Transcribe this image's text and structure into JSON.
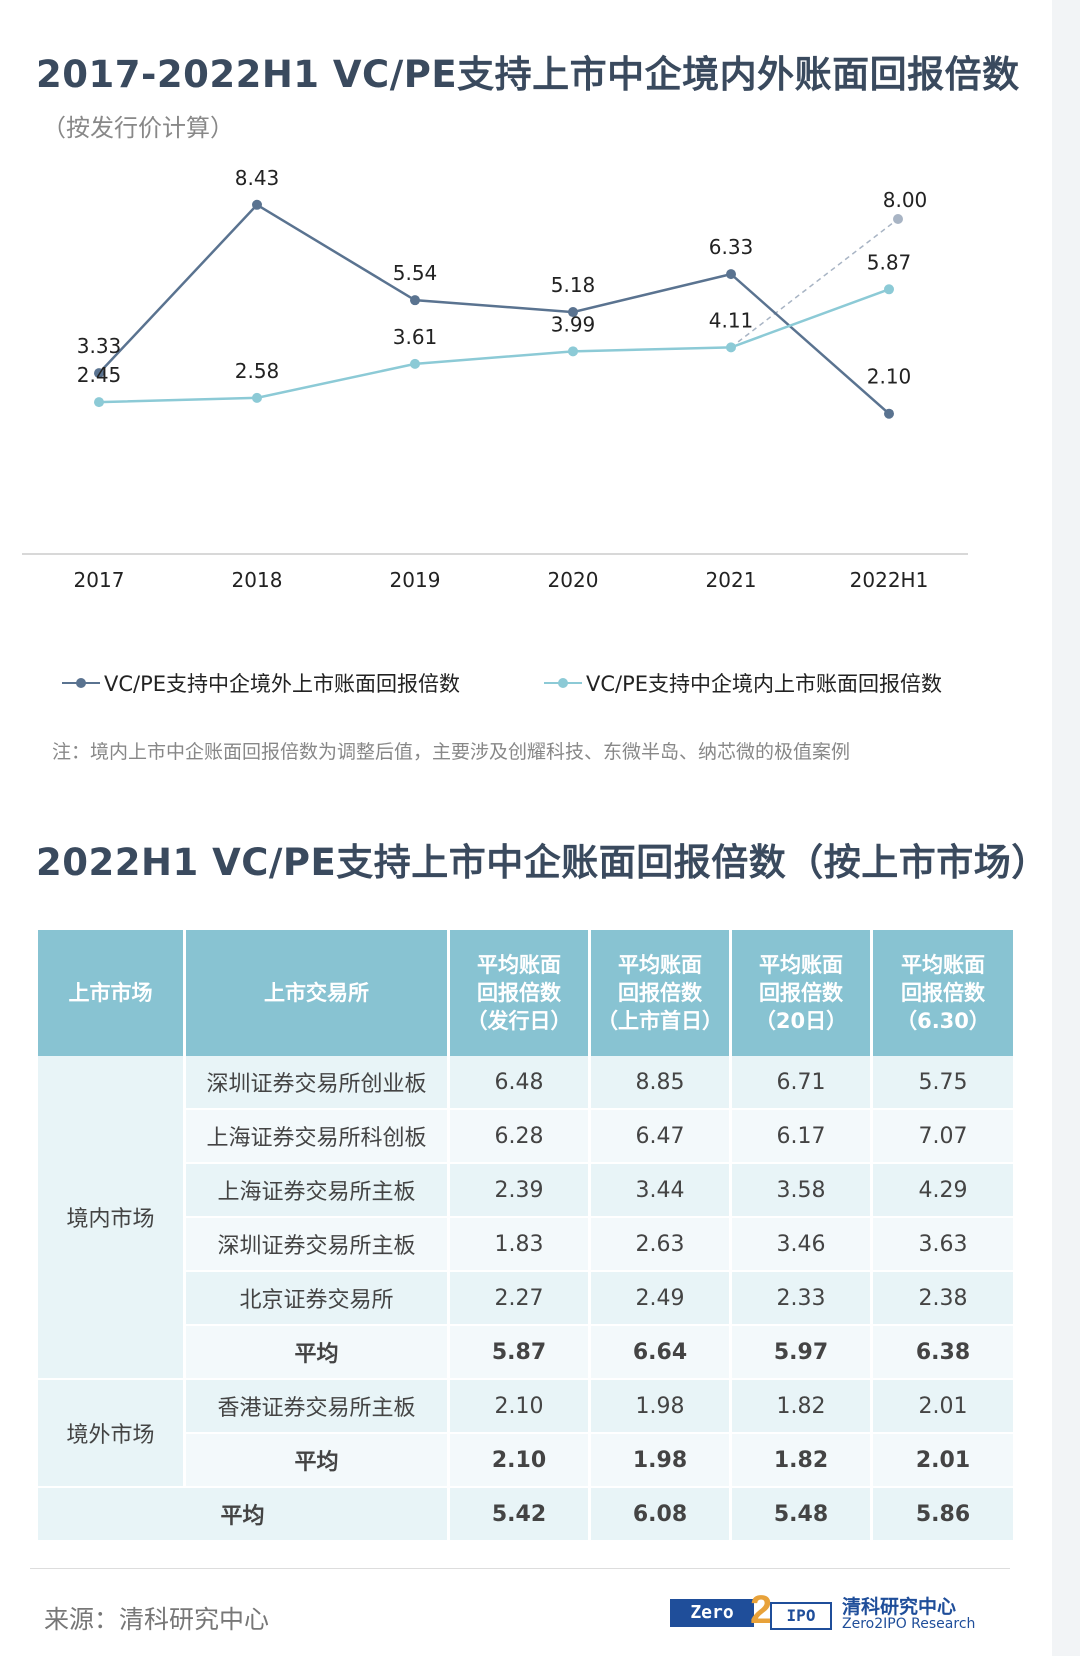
{
  "title1": "2017-2022H1 VC/PE支持上市中企境内外账面回报倍数",
  "subtitle1": "（按发行价计算）",
  "chart_data": {
    "type": "line",
    "categories": [
      "2017",
      "2018",
      "2019",
      "2020",
      "2021",
      "2022H1"
    ],
    "series": [
      {
        "name": "VC/PE支持中企境外上市账面回报倍数",
        "values": [
          3.33,
          8.43,
          5.54,
          5.18,
          6.33,
          2.1
        ],
        "color": "#5a7390"
      },
      {
        "name": "VC/PE支持中企境内上市账面回报倍数",
        "values": [
          2.45,
          2.58,
          3.61,
          3.99,
          4.11,
          5.87
        ],
        "color": "#8ccad6"
      }
    ],
    "extra_point": {
      "category": "2022H1",
      "value": 8.0,
      "label": "8.00",
      "style": "dashed",
      "color": "#a8b4c4"
    },
    "grid": false
  },
  "note": "注：境内上市中企账面回报倍数为调整后值，主要涉及创耀科技、东微半岛、纳芯微的极值案例",
  "title2": "2022H1 VC/PE支持上市中企账面回报倍数（按上市市场）",
  "table": {
    "headers": [
      "上市市场",
      "上市交易所",
      "平均账面回报倍数（发行日）",
      "平均账面回报倍数（上市首日）",
      "平均账面回报倍数（20日）",
      "平均账面回报倍数（6.30）"
    ],
    "header_lines": [
      [
        "上市市场"
      ],
      [
        "上市交易所"
      ],
      [
        "平均账面",
        "回报倍数",
        "（发行日）"
      ],
      [
        "平均账面",
        "回报倍数",
        "（上市首日）"
      ],
      [
        "平均账面",
        "回报倍数",
        "（20日）"
      ],
      [
        "平均账面",
        "回报倍数",
        "（6.30）"
      ]
    ],
    "groups": [
      {
        "market": "境内市场",
        "rows": [
          {
            "exchange": "深圳证券交易所创业板",
            "values": [
              "6.48",
              "8.85",
              "6.71",
              "5.75"
            ]
          },
          {
            "exchange": "上海证券交易所科创板",
            "values": [
              "6.28",
              "6.47",
              "6.17",
              "7.07"
            ]
          },
          {
            "exchange": "上海证券交易所主板",
            "values": [
              "2.39",
              "3.44",
              "3.58",
              "4.29"
            ]
          },
          {
            "exchange": "深圳证券交易所主板",
            "values": [
              "1.83",
              "2.63",
              "3.46",
              "3.63"
            ]
          },
          {
            "exchange": "北京证券交易所",
            "values": [
              "2.27",
              "2.49",
              "2.33",
              "2.38"
            ]
          },
          {
            "exchange": "平均",
            "values": [
              "5.87",
              "6.64",
              "5.97",
              "6.38"
            ],
            "bold": true
          }
        ]
      },
      {
        "market": "境外市场",
        "rows": [
          {
            "exchange": "香港证券交易所主板",
            "values": [
              "2.10",
              "1.98",
              "1.82",
              "2.01"
            ]
          },
          {
            "exchange": "平均",
            "values": [
              "2.10",
              "1.98",
              "1.82",
              "2.01"
            ],
            "bold": true
          }
        ]
      }
    ],
    "total": {
      "label": "平均",
      "values": [
        "5.42",
        "6.08",
        "5.48",
        "5.86"
      ]
    },
    "colors": {
      "header": "#88c3d2",
      "odd": "#e8f4f7",
      "even": "#f3f9fb"
    }
  },
  "source": "来源：清科研究中心",
  "logo": {
    "box1": "Zero",
    "two": "2",
    "box2": "IPO",
    "cn": "清科研究中心",
    "en": "Zero2IPO Research"
  }
}
